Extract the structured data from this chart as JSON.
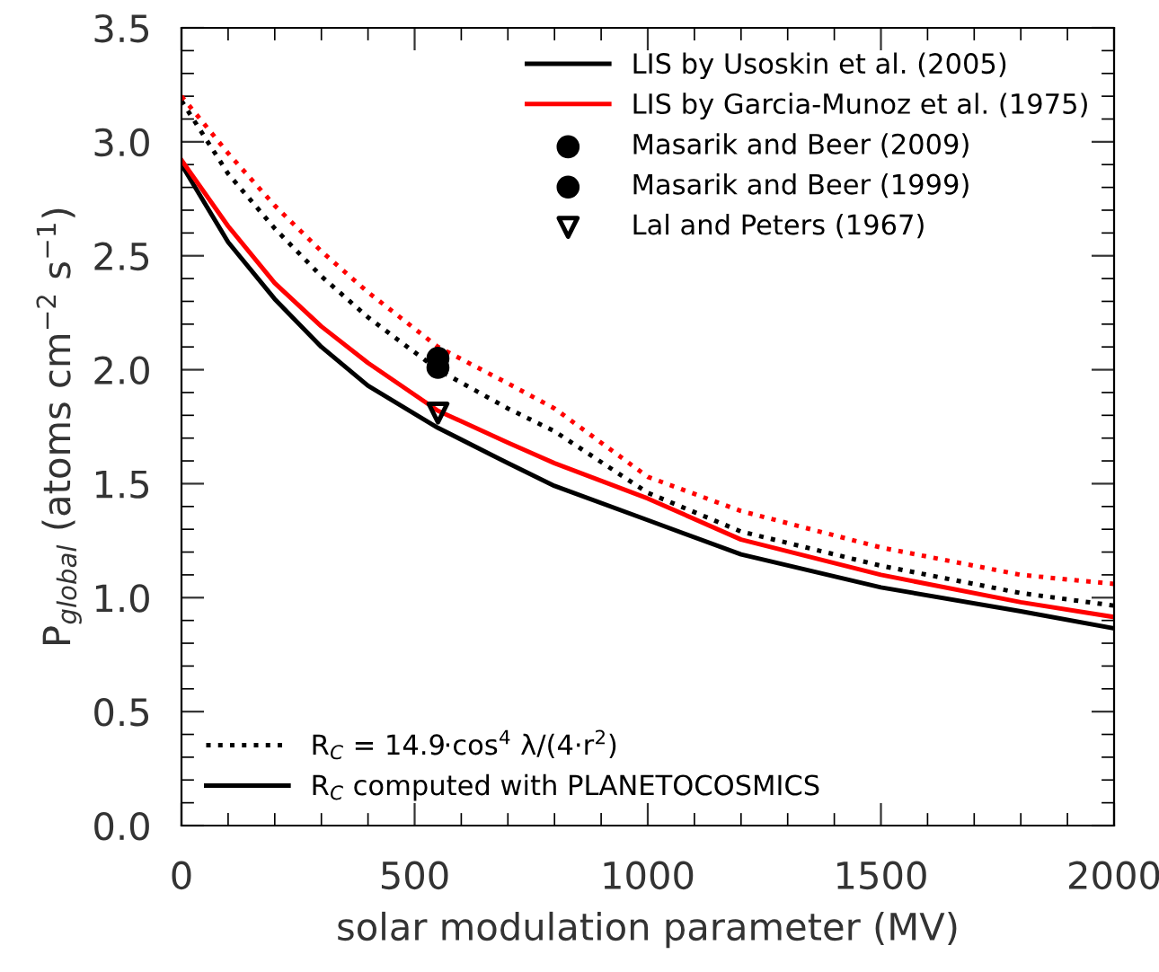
{
  "chart_data": {
    "type": "line",
    "xlabel": "solar modulation parameter (MV)",
    "ylabel": "P$_{global}$ (atoms cm$^{−2}$ s$^{−1}$)",
    "xlim": [
      0,
      2000
    ],
    "xticks": [
      0,
      500,
      1000,
      1500,
      2000
    ],
    "ylim": [
      0,
      3.5
    ],
    "yticks": [
      {
        "value": 0,
        "label": "0.0"
      },
      0.5,
      {
        "value": 1,
        "label": "1.0"
      },
      1.5,
      {
        "value": 2,
        "label": "2.0"
      },
      2.5,
      {
        "value": 3,
        "label": "3.0"
      },
      3.5
    ],
    "grid": false,
    "legend": "top right",
    "series": [
      {
        "name": "LIS by Usoskin et al. (2005)",
        "color": "#000000",
        "line_style": "solid",
        "x": [
          0,
          100,
          200,
          300,
          400,
          550,
          700,
          800,
          1000,
          1200,
          1500,
          1800,
          2000
        ],
        "values": [
          2.9,
          2.56,
          2.31,
          2.1,
          1.93,
          1.745,
          1.59,
          1.49,
          1.34,
          1.19,
          1.045,
          0.94,
          0.865
        ]
      },
      {
        "name": "LIS by Garcia-Munoz et al. (1975)",
        "color": "#ff0000",
        "line_style": "solid",
        "x": [
          0,
          100,
          200,
          300,
          400,
          550,
          700,
          800,
          1000,
          1200,
          1500,
          1800,
          2000
        ],
        "values": [
          2.92,
          2.63,
          2.38,
          2.19,
          2.03,
          1.82,
          1.68,
          1.59,
          1.435,
          1.255,
          1.1,
          0.98,
          0.915
        ]
      },
      {
        "name": "R$_{C}$ = 14.9·cos$^{4}$ λ/(4·r$^{2}$)",
        "color": "#000000",
        "line_style": "dotted",
        "x": [
          0,
          100,
          200,
          300,
          400,
          550,
          700,
          800,
          1000,
          1200,
          1500,
          1800,
          2000
        ],
        "values": [
          3.18,
          2.86,
          2.62,
          2.41,
          2.23,
          2.0,
          1.83,
          1.73,
          1.46,
          1.29,
          1.14,
          1.02,
          0.965
        ]
      },
      {
        "color": "#ff0000",
        "line_style": "dotted",
        "x": [
          0,
          100,
          200,
          300,
          400,
          550,
          700,
          800,
          1000,
          1200,
          1500,
          1800,
          2000
        ],
        "values": [
          3.2,
          2.95,
          2.72,
          2.52,
          2.34,
          2.1,
          1.94,
          1.83,
          1.53,
          1.38,
          1.22,
          1.1,
          1.06
        ]
      },
      {
        "type": "scatter",
        "name": "Masarik and Beer (2009)",
        "color": "#000000",
        "marker": "circle",
        "x": [
          550
        ],
        "values": [
          2.05
        ]
      },
      {
        "type": "scatter",
        "name": "Masarik and Beer (1999)",
        "color": "#000000",
        "marker": "circle",
        "x": [
          550
        ],
        "values": [
          2.01
        ]
      },
      {
        "type": "scatter",
        "name": "Lal and Peters (1967)",
        "color": "#000000",
        "marker": "triangle",
        "x": [
          550
        ],
        "values": [
          1.81
        ]
      }
    ],
    "annotations": [
      "R$_{C}$ computed with PLANETOCOSMICS"
    ]
  }
}
